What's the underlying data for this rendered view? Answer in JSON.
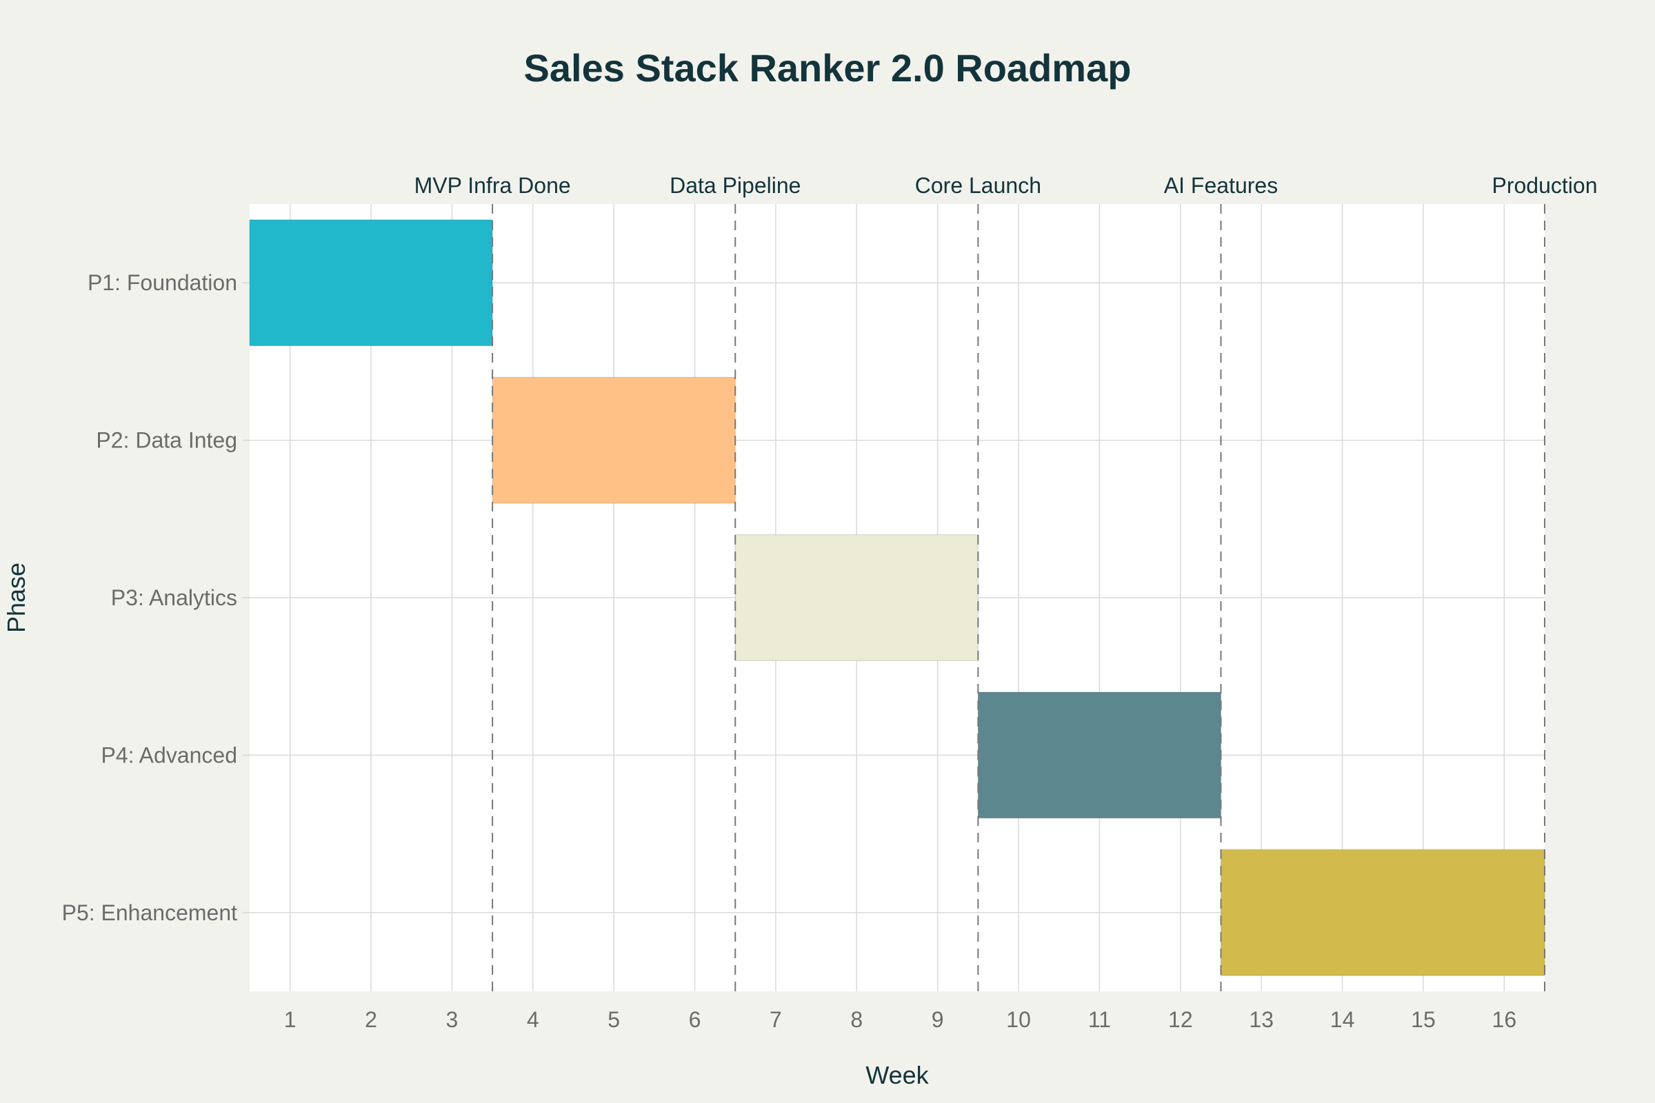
{
  "colors": {
    "page_background": "#f2f2ed",
    "plot_background": "#ffffff",
    "title": "#13343b",
    "tick_label": "#6b6b6b",
    "grid": "#d9d9d9",
    "milestone_line": "#777777"
  },
  "chart_data": {
    "type": "gantt",
    "title": "Sales Stack Ranker 2.0 Roadmap",
    "xlabel": "Week",
    "ylabel": "Phase",
    "xlim": [
      0.5,
      16.5
    ],
    "x_ticks": [
      1,
      2,
      3,
      4,
      5,
      6,
      7,
      8,
      9,
      10,
      11,
      12,
      13,
      14,
      15,
      16
    ],
    "grid": true,
    "phases": [
      {
        "label": "P1: Foundation",
        "start": 0.5,
        "end": 3.5,
        "color": "#21b8cc"
      },
      {
        "label": "P2: Data Integ",
        "start": 3.5,
        "end": 6.5,
        "color": "#ffc185"
      },
      {
        "label": "P3: Analytics",
        "start": 6.5,
        "end": 9.5,
        "color": "#ecebd5"
      },
      {
        "label": "P4: Advanced",
        "start": 9.5,
        "end": 12.5,
        "color": "#5d878f"
      },
      {
        "label": "P5: Enhancement",
        "start": 12.5,
        "end": 16.5,
        "color": "#d2ba4c"
      }
    ],
    "milestones": [
      {
        "label": "MVP Infra Done",
        "x": 3.5
      },
      {
        "label": "Data Pipeline",
        "x": 6.5
      },
      {
        "label": "Core Launch",
        "x": 9.5
      },
      {
        "label": "AI Features",
        "x": 12.5
      },
      {
        "label": "Production",
        "x": 16.5
      }
    ]
  }
}
